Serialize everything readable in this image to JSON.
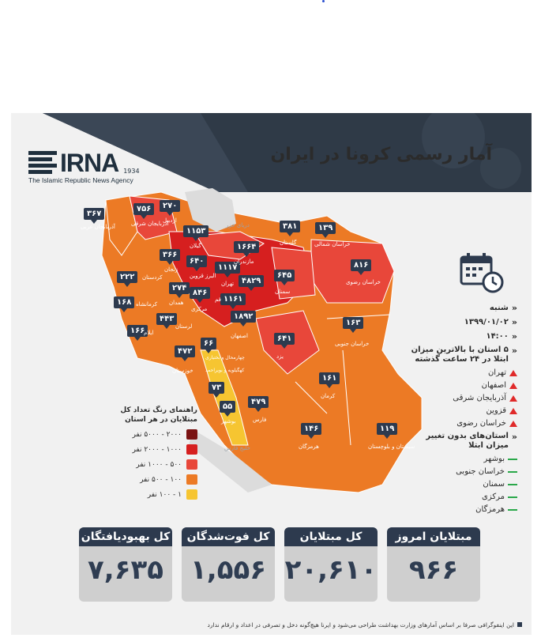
{
  "page": {
    "title": "آمار رسمی کرونا در ایران",
    "logo": {
      "brand": "IRNA",
      "year": "1934",
      "tagline": "The Islamic Republic News Agency"
    }
  },
  "map": {
    "provinces": [
      {
        "name": "آذربایجان غربی",
        "value": "۳۶۷"
      },
      {
        "name": "آذربایجان شرقی",
        "value": "۷۵۶"
      },
      {
        "name": "اردبیل",
        "value": "۲۷۰"
      },
      {
        "name": "گیلان",
        "value": "۱۱۵۳"
      },
      {
        "name": "زنجان",
        "value": "۳۶۶"
      },
      {
        "name": "قزوین",
        "value": "۶۴۰"
      },
      {
        "name": "البرز",
        "value": "۱۱۱۷"
      },
      {
        "name": "تهران",
        "value": "۴۸۲۹"
      },
      {
        "name": "مازندران",
        "value": "۱۶۶۴"
      },
      {
        "name": "گلستان",
        "value": "۳۸۱"
      },
      {
        "name": "خراسان شمالی",
        "value": "۱۳۹"
      },
      {
        "name": "خراسان رضوی",
        "value": "۸۱۶"
      },
      {
        "name": "سمنان",
        "value": "۶۴۵"
      },
      {
        "name": "کردستان",
        "value": "۲۲۲"
      },
      {
        "name": "همدان",
        "value": "۲۷۴"
      },
      {
        "name": "مرکزی",
        "value": "۸۴۶"
      },
      {
        "name": "قم",
        "value": "۱۱۶۱"
      },
      {
        "name": "کرمانشاه",
        "value": "۱۶۸"
      },
      {
        "name": "لرستان",
        "value": "۴۴۳"
      },
      {
        "name": "ایلام",
        "value": "۱۶۶"
      },
      {
        "name": "اصفهان",
        "value": "۱۸۹۲"
      },
      {
        "name": "خراسان جنوبی",
        "value": "۱۶۳"
      },
      {
        "name": "چهارمحال و بختیاری",
        "value": "۶۶"
      },
      {
        "name": "خوزستان",
        "value": "۴۷۲"
      },
      {
        "name": "یزد",
        "value": "۶۴۱"
      },
      {
        "name": "کهگیلویه و بویراحمد",
        "value": "۷۳"
      },
      {
        "name": "بوشهر",
        "value": "۵۵"
      },
      {
        "name": "کرمان",
        "value": "۱۶۱"
      },
      {
        "name": "فارس",
        "value": "۴۷۹"
      },
      {
        "name": "هرمزگان",
        "value": "۱۴۶"
      },
      {
        "name": "سیستان و بلوچستان",
        "value": "۱۱۹"
      }
    ],
    "seas": {
      "caspian": "دریای خزر",
      "gulf": "خلیج فارس"
    }
  },
  "info": {
    "day": "شنبه",
    "date": "۱۳۹۹/۰۱/۰۲",
    "time": "۱۴:۰۰",
    "top5_title": "۵ استان با بالاترین میزان ابتلا در ۲۴ ساعت گذشته",
    "top5": [
      "تهران",
      "اصفهان",
      "آذربایجان شرقی",
      "قزوین",
      "خراسان رضوی"
    ],
    "nochange_title": "استان‌های بدون تغییر میزان ابتلا",
    "nochange": [
      "بوشهر",
      "خراسان جنوبی",
      "سمنان",
      "مرکزی",
      "هرمزگان"
    ]
  },
  "legend": {
    "title": "راهنمای رنگ تعداد کل مبتلایان در هر استان",
    "items": [
      {
        "label": "۲۰۰۰ - ۵۰۰۰ نفر",
        "color": "#7a1212"
      },
      {
        "label": "۱۰۰۰ - ۲۰۰۰ نفر",
        "color": "#d61f1f"
      },
      {
        "label": "۵۰۰ - ۱۰۰۰ نفر",
        "color": "#e8473a"
      },
      {
        "label": "۱۰۰ - ۵۰۰ نفر",
        "color": "#ec7a25"
      },
      {
        "label": "۱ - ۱۰۰ نفر",
        "color": "#f6c531"
      }
    ]
  },
  "stats": [
    {
      "label": "کل بهبودیافتگان",
      "value": "۷,۶۳۵"
    },
    {
      "label": "کل فوت‌شدگان",
      "value": "۱,۵۵۶"
    },
    {
      "label": "کل مبتلایان",
      "value": "۲۰,۶۱۰"
    },
    {
      "label": "مبتلایان امروز",
      "value": "۹۶۶"
    }
  ],
  "footer": "این اینفوگرافی صرفا بر اساس آمارهای وزارت بهداشت طراحی می‌شود و ایرنا هیچ‌گونه دخل و تصرفی در اعداد و ارقام ندارد"
}
